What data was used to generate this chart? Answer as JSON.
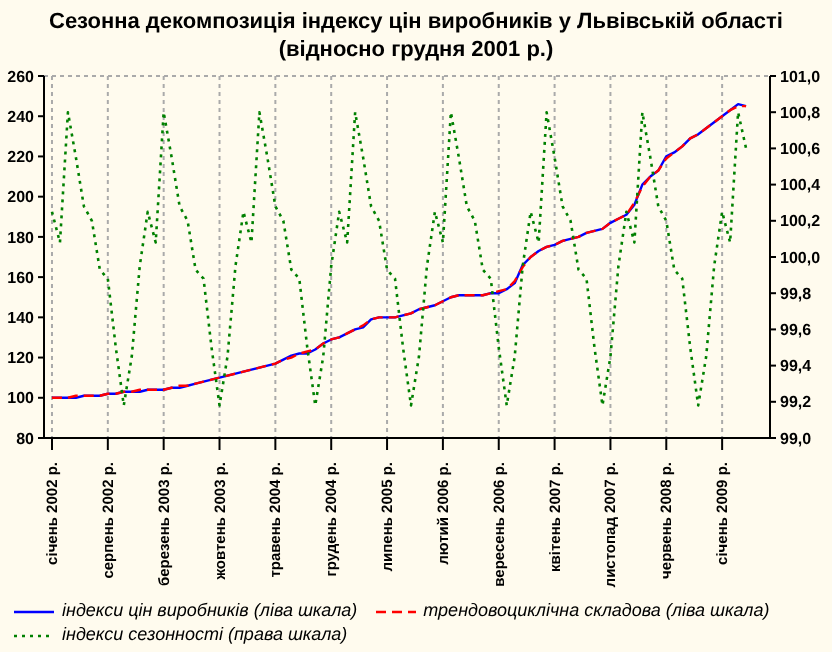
{
  "chart_data": {
    "type": "line",
    "title": "Сезонна декомпозиція індексу цін виробників у Львівській області (відносно грудня 2001 р.)",
    "categories": [
      "січень 2002 р.",
      null,
      null,
      null,
      null,
      null,
      null,
      "серпень 2002 р.",
      null,
      null,
      null,
      null,
      null,
      null,
      "березень 2003 р.",
      null,
      null,
      null,
      null,
      null,
      null,
      "жовтень 2003 р.",
      null,
      null,
      null,
      null,
      null,
      null,
      "травень 2004 р.",
      null,
      null,
      null,
      null,
      null,
      null,
      "грудень 2004 р.",
      null,
      null,
      null,
      null,
      null,
      null,
      "липень 2005 р.",
      null,
      null,
      null,
      null,
      null,
      null,
      "лютий 2006 р.",
      null,
      null,
      null,
      null,
      null,
      null,
      "вересень 2006 р.",
      null,
      null,
      null,
      null,
      null,
      null,
      "квітень 2007 р.",
      null,
      null,
      null,
      null,
      null,
      null,
      "листопад 2007 р.",
      null,
      null,
      null,
      null,
      null,
      null,
      "червень 2008 р.",
      null,
      null,
      null,
      null,
      null,
      null,
      "січень 2009 р.",
      null,
      null,
      null
    ],
    "series": [
      {
        "name": "індекси цін виробників (ліва шкала)",
        "color": "#0000ff",
        "line_style": "solid",
        "values": [
          100,
          100,
          100,
          100,
          101,
          101,
          101,
          102,
          102,
          103,
          103,
          103,
          104,
          104,
          104,
          105,
          105,
          106,
          107,
          108,
          109,
          110,
          111,
          112,
          113,
          114,
          115,
          116,
          117,
          119,
          121,
          122,
          122,
          124,
          127,
          129,
          130,
          132,
          134,
          135,
          139,
          140,
          140,
          140,
          141,
          142,
          144,
          145,
          146,
          148,
          150,
          151,
          151,
          151,
          151,
          152,
          152,
          154,
          157,
          166,
          170,
          173,
          175,
          176,
          178,
          179,
          180,
          182,
          183,
          184,
          187,
          189,
          191,
          196,
          206,
          210,
          213,
          220,
          222,
          225,
          229,
          231,
          234,
          237,
          240,
          243,
          246,
          245
        ]
      },
      {
        "name": "трендовоциклічна складова (ліва шкала)",
        "color": "#ff0000",
        "line_style": "dashed",
        "values": [
          100,
          100,
          100,
          101,
          101,
          101,
          101,
          102,
          102,
          103,
          103,
          104,
          104,
          104,
          104,
          105,
          106,
          106,
          107,
          108,
          109,
          110,
          111,
          112,
          113,
          114,
          115,
          116,
          117,
          119,
          120,
          122,
          123,
          124,
          127,
          129,
          130,
          132,
          134,
          136,
          139,
          140,
          140,
          140,
          141,
          142,
          144,
          145,
          146,
          148,
          150,
          151,
          151,
          151,
          151,
          152,
          153,
          154,
          158,
          165,
          170,
          173,
          175,
          176,
          178,
          179,
          180,
          182,
          183,
          184,
          187,
          189,
          191,
          197,
          205,
          210,
          213,
          219,
          222,
          225,
          229,
          231,
          234,
          237,
          240,
          243,
          245,
          245
        ]
      },
      {
        "name": "індекси сезонності (права шкала)",
        "color": "#008000",
        "line_style": "dotted",
        "axis": "y2",
        "values": [
          100.25,
          100.08,
          100.8,
          100.55,
          100.28,
          100.2,
          99.93,
          99.88,
          99.5,
          99.18,
          99.45,
          99.95,
          100.25,
          100.08,
          100.8,
          100.55,
          100.28,
          100.2,
          99.93,
          99.88,
          99.5,
          99.18,
          99.45,
          99.95,
          100.25,
          100.08,
          100.8,
          100.55,
          100.28,
          100.2,
          99.93,
          99.88,
          99.5,
          99.18,
          99.45,
          99.95,
          100.25,
          100.08,
          100.8,
          100.55,
          100.28,
          100.2,
          99.93,
          99.88,
          99.5,
          99.18,
          99.45,
          99.95,
          100.25,
          100.08,
          100.8,
          100.55,
          100.28,
          100.2,
          99.93,
          99.88,
          99.5,
          99.18,
          99.45,
          99.95,
          100.25,
          100.08,
          100.8,
          100.55,
          100.28,
          100.2,
          99.93,
          99.88,
          99.5,
          99.18,
          99.45,
          99.95,
          100.25,
          100.08,
          100.8,
          100.55,
          100.28,
          100.2,
          99.93,
          99.88,
          99.5,
          99.18,
          99.45,
          99.95,
          100.25,
          100.08,
          100.8,
          100.6
        ]
      }
    ],
    "ylim": [
      80,
      260
    ],
    "yticks": [
      80,
      100,
      120,
      140,
      160,
      180,
      200,
      220,
      240,
      260
    ],
    "y2lim": [
      99,
      101
    ],
    "y2ticks": [
      {
        "value": 99,
        "label": "99,0"
      },
      {
        "value": 99.2,
        "label": "99,2"
      },
      {
        "value": 99.4,
        "label": "99,4"
      },
      {
        "value": 99.6,
        "label": "99,6"
      },
      {
        "value": 99.8,
        "label": "99,8"
      },
      {
        "value": 100,
        "label": "100,0"
      },
      {
        "value": 100.2,
        "label": "100,2"
      },
      {
        "value": 100.4,
        "label": "100,4"
      },
      {
        "value": 100.6,
        "label": "100,6"
      },
      {
        "value": 100.8,
        "label": "100,8"
      },
      {
        "value": 101,
        "label": "101,0"
      }
    ],
    "grid": true,
    "legend": "bottom",
    "marker": "none"
  }
}
